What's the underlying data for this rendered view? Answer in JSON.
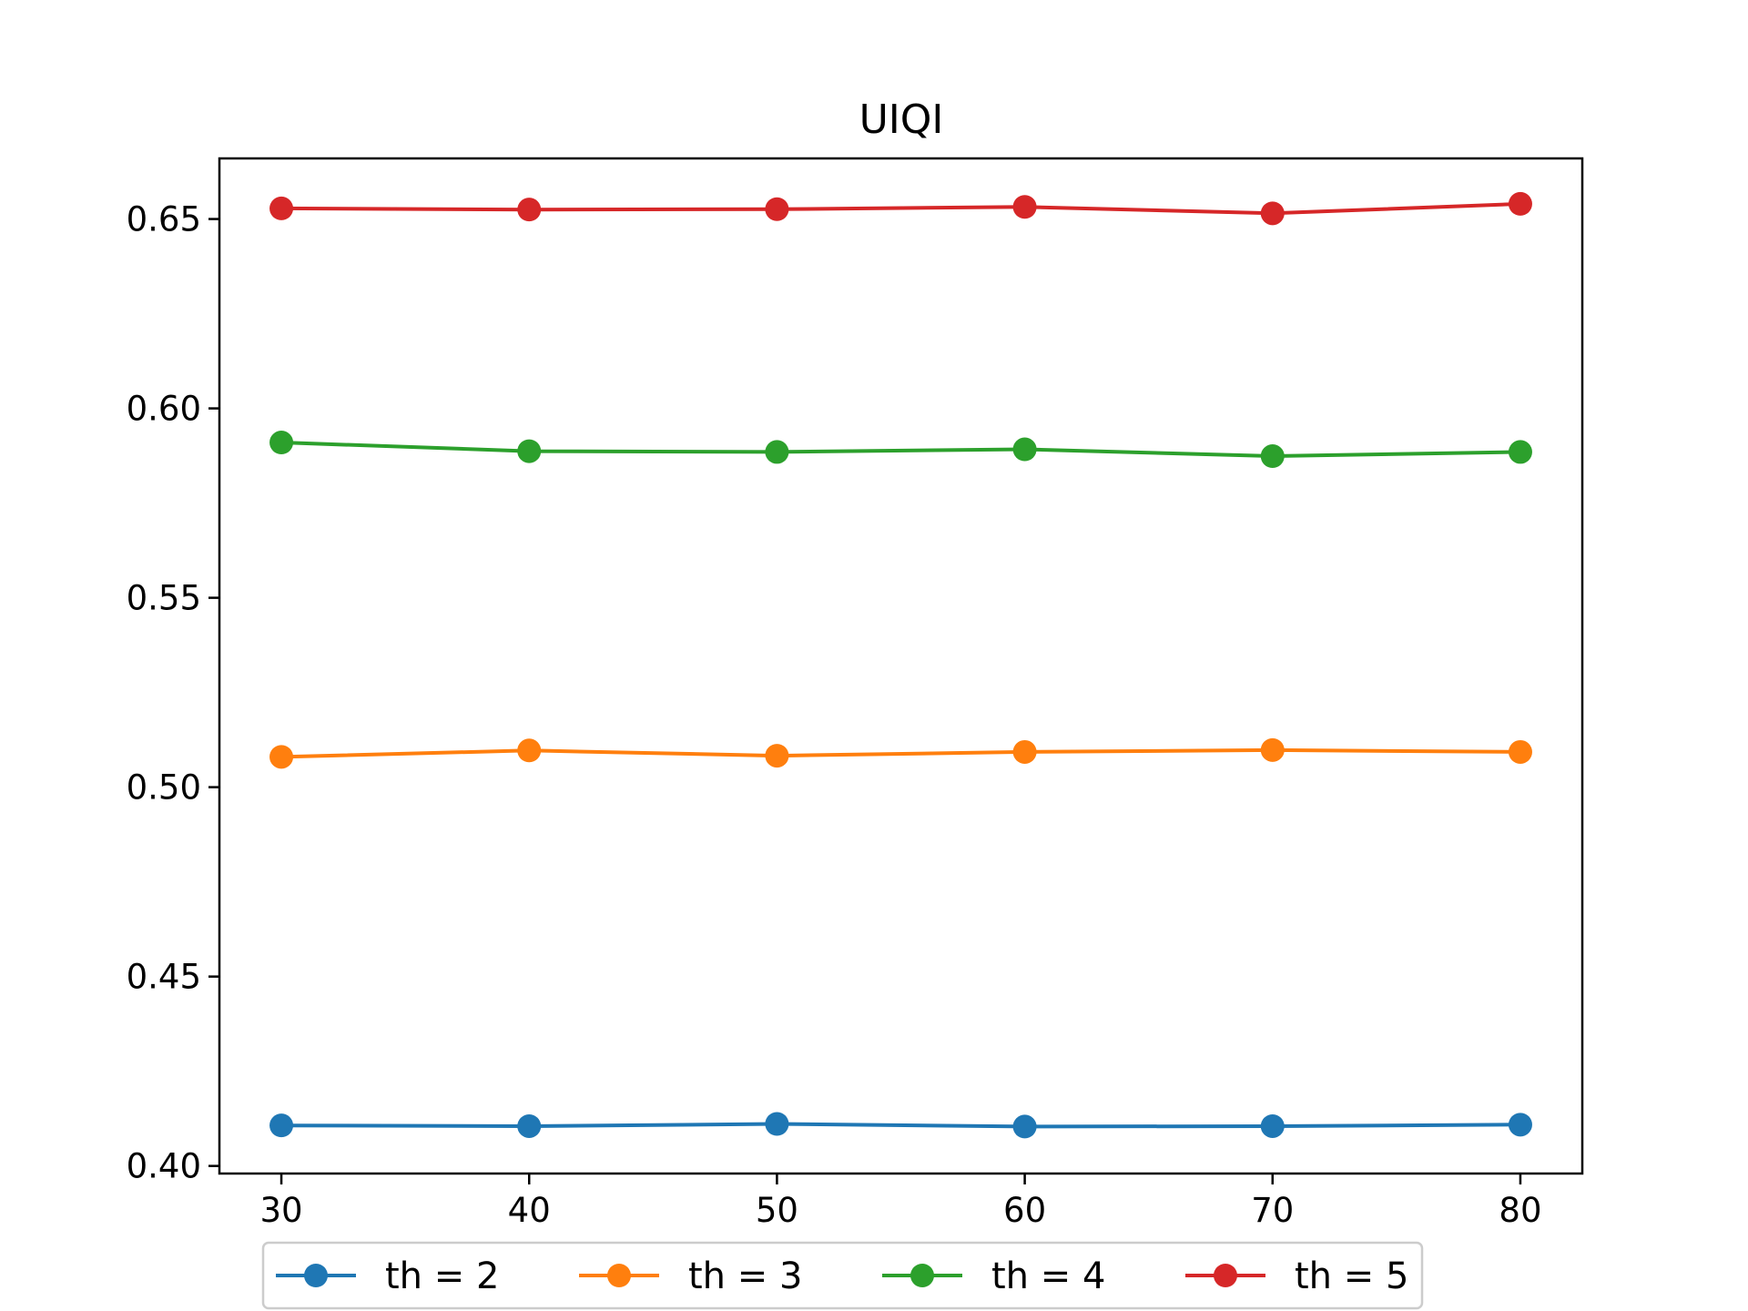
{
  "chart_data": {
    "type": "line",
    "title": "UIQI",
    "xlabel": "",
    "ylabel": "",
    "x": [
      30,
      40,
      50,
      60,
      70,
      80
    ],
    "x_ticks": [
      "30",
      "40",
      "50",
      "60",
      "70",
      "80"
    ],
    "y_ticks": [
      "0.40",
      "0.45",
      "0.50",
      "0.55",
      "0.60",
      "0.65"
    ],
    "xlim": [
      27.5,
      82.5
    ],
    "ylim": [
      0.398,
      0.666
    ],
    "grid": false,
    "legend_position": "bottom-center outside",
    "series": [
      {
        "name": "th = 2",
        "color": "#1f77b4",
        "marker": "circle",
        "values": [
          0.4107,
          0.4105,
          0.4111,
          0.4104,
          0.4105,
          0.4109
        ]
      },
      {
        "name": "th = 3",
        "color": "#ff7f0e",
        "marker": "circle",
        "values": [
          0.508,
          0.5097,
          0.5083,
          0.5093,
          0.5098,
          0.5093
        ]
      },
      {
        "name": "th = 4",
        "color": "#2ca02c",
        "marker": "circle",
        "values": [
          0.591,
          0.5887,
          0.5885,
          0.5892,
          0.5874,
          0.5885
        ]
      },
      {
        "name": "th = 5",
        "color": "#d62728",
        "marker": "circle",
        "values": [
          0.6528,
          0.6525,
          0.6526,
          0.6532,
          0.6515,
          0.654
        ]
      }
    ]
  }
}
